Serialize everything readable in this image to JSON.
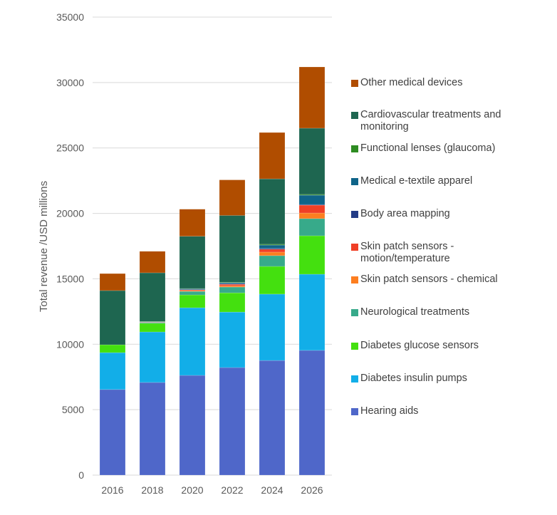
{
  "chart_data": {
    "type": "bar",
    "stacked": true,
    "title": "",
    "xlabel": "",
    "ylabel": "Total revenue /USD millions",
    "ylim": [
      0,
      35000
    ],
    "yticks": [
      0,
      5000,
      10000,
      15000,
      20000,
      25000,
      30000,
      35000
    ],
    "grid": true,
    "legend_position": "right",
    "categories": [
      "2016",
      "2018",
      "2020",
      "2022",
      "2024",
      "2026"
    ],
    "series": [
      {
        "name": "Hearing aids",
        "color": "#4F67C9",
        "values": [
          6540,
          7080,
          7620,
          8220,
          8760,
          9530
        ]
      },
      {
        "name": "Diabetes insulin pumps",
        "color": "#12AEE8",
        "values": [
          2820,
          3860,
          5170,
          4240,
          5070,
          5820
        ]
      },
      {
        "name": "Diabetes glucose sensors",
        "color": "#44E00F",
        "values": [
          600,
          660,
          980,
          1470,
          2120,
          2940
        ]
      },
      {
        "name": "Neurological treatments",
        "color": "#37AA8A",
        "values": [
          0,
          60,
          270,
          440,
          820,
          1310
        ]
      },
      {
        "name": "Skin patch sensors - chemical",
        "color": "#FD7E20",
        "values": [
          0,
          20,
          60,
          100,
          270,
          430
        ]
      },
      {
        "name": "Skin patch sensors - motion/temperature",
        "color": "#F03F26",
        "values": [
          0,
          20,
          60,
          110,
          220,
          600
        ]
      },
      {
        "name": "Body area mapping",
        "color": "#233C86",
        "values": [
          0,
          10,
          20,
          40,
          60,
          50
        ]
      },
      {
        "name": "Medical e-textile apparel",
        "color": "#0F6489",
        "values": [
          0,
          20,
          60,
          80,
          260,
          710
        ]
      },
      {
        "name": "Functional lenses (glaucoma)",
        "color": "#2E8C22",
        "values": [
          0,
          10,
          20,
          40,
          60,
          60
        ]
      },
      {
        "name": "Cardiovascular treatments and monitoring",
        "color": "#1E6650",
        "values": [
          4140,
          3720,
          3990,
          5100,
          5000,
          5060
        ]
      },
      {
        "name": "Other medical devices",
        "color": "#B04D00",
        "values": [
          1300,
          1640,
          2070,
          2720,
          3540,
          4680
        ]
      }
    ],
    "legend_order": [
      "Other medical devices",
      "Cardiovascular treatments and monitoring",
      "Functional lenses (glaucoma)",
      "Medical e-textile apparel",
      "Body area mapping",
      "Skin patch sensors - motion/temperature",
      "Skin patch sensors - chemical",
      "Neurological treatments",
      "Diabetes glucose sensors",
      "Diabetes insulin pumps",
      "Hearing aids"
    ],
    "legend_lines": {
      "Cardiovascular treatments and monitoring": [
        "Cardiovascular treatments and",
        "monitoring"
      ],
      "Skin patch sensors - motion/temperature": [
        "Skin patch sensors -",
        "motion/temperature"
      ]
    }
  }
}
